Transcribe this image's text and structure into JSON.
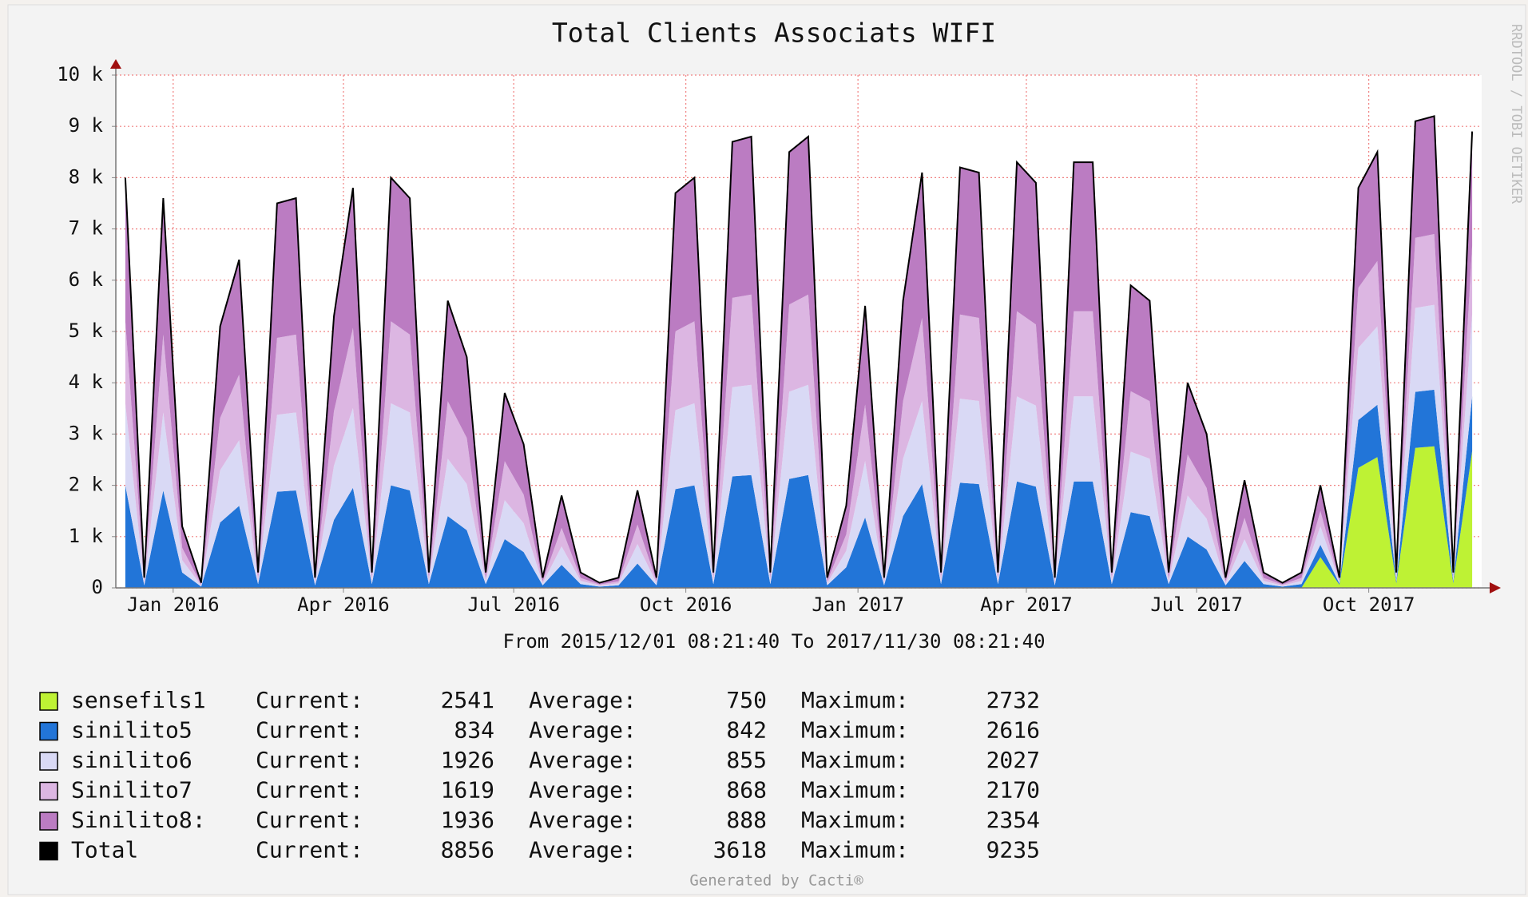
{
  "chart_data": {
    "type": "stacked_area",
    "title": "Total Clients Associats WIFI",
    "xlim": [
      "2015/12/01 08:21:40",
      "2017/11/30 08:21:40"
    ],
    "range_text": "From 2015/12/01 08:21:40 To 2017/11/30 08:21:40",
    "xticks": [
      {
        "value": "2016-01",
        "label": "Jan 2016"
      },
      {
        "value": "2016-04",
        "label": "Apr 2016"
      },
      {
        "value": "2016-07",
        "label": "Jul 2016"
      },
      {
        "value": "2016-10",
        "label": "Oct 2016"
      },
      {
        "value": "2017-01",
        "label": "Jan 2017"
      },
      {
        "value": "2017-04",
        "label": "Apr 2017"
      },
      {
        "value": "2017-07",
        "label": "Jul 2017"
      },
      {
        "value": "2017-10",
        "label": "Oct 2017"
      }
    ],
    "ylim": [
      0,
      10000
    ],
    "yticks": [
      0,
      {
        "value": 1000,
        "label": "1 k"
      },
      {
        "value": 2000,
        "label": "2 k"
      },
      {
        "value": 3000,
        "label": "3 k"
      },
      {
        "value": 4000,
        "label": "4 k"
      },
      {
        "value": 5000,
        "label": "5 k"
      },
      {
        "value": 6000,
        "label": "6 k"
      },
      {
        "value": 7000,
        "label": "7 k"
      },
      {
        "value": 8000,
        "label": "8 k"
      },
      {
        "value": 9000,
        "label": "9 k"
      },
      {
        "value": 10000,
        "label": "10 k"
      }
    ],
    "grid": true,
    "legend_labels": [
      "Current:",
      "Average:",
      "Maximum:"
    ],
    "series": [
      {
        "name": "sensefils1",
        "color": "#bef234",
        "current": 2541,
        "average": 750,
        "maximum": 2732,
        "values": [
          0,
          0,
          0,
          0,
          0,
          0,
          0,
          0,
          0,
          0,
          0,
          0,
          0,
          0,
          0,
          0,
          0,
          0,
          0,
          0,
          0,
          0,
          0,
          0,
          0,
          0,
          0,
          0,
          0,
          0,
          0,
          0,
          0,
          0,
          0,
          0,
          0,
          0,
          0,
          0,
          0,
          0,
          0,
          0,
          0,
          0,
          0,
          0,
          0,
          0,
          0,
          0,
          0,
          0,
          0,
          0,
          0,
          0,
          0,
          0,
          0,
          0,
          0,
          600,
          60,
          2340,
          2550,
          90,
          2730,
          2760,
          90,
          2670
        ]
      },
      {
        "name": "sinilito5",
        "color": "#2275d8",
        "current": 834,
        "average": 842,
        "maximum": 2616,
        "values": [
          2000,
          50,
          1900,
          300,
          25,
          1275,
          1600,
          75,
          1875,
          1900,
          50,
          1325,
          1950,
          75,
          2000,
          1900,
          75,
          1400,
          1125,
          75,
          950,
          700,
          50,
          450,
          75,
          25,
          50,
          475,
          50,
          1925,
          2000,
          75,
          2175,
          2200,
          75,
          2125,
          2200,
          50,
          400,
          1375,
          50,
          1400,
          2025,
          75,
          2050,
          2025,
          75,
          2075,
          1975,
          50,
          2075,
          2075,
          75,
          1475,
          1400,
          75,
          1000,
          750,
          50,
          525,
          75,
          25,
          75,
          240,
          24,
          936,
          1020,
          36,
          1092,
          1104,
          36,
          1068
        ]
      },
      {
        "name": "sinilito6",
        "color": "#d9d9f5",
        "current": 1926,
        "average": 855,
        "maximum": 2027,
        "values": [
          1600,
          40,
          1520,
          240,
          20,
          1020,
          1280,
          60,
          1500,
          1520,
          40,
          1060,
          1560,
          60,
          1600,
          1520,
          60,
          1120,
          900,
          60,
          760,
          560,
          40,
          360,
          60,
          20,
          40,
          380,
          40,
          1540,
          1600,
          60,
          1740,
          1760,
          60,
          1700,
          1760,
          40,
          320,
          1100,
          40,
          1120,
          1620,
          60,
          1640,
          1620,
          60,
          1660,
          1580,
          40,
          1660,
          1660,
          60,
          1180,
          1120,
          60,
          800,
          600,
          40,
          420,
          60,
          20,
          60,
          360,
          36,
          1404,
          1530,
          54,
          1638,
          1656,
          54,
          1602
        ]
      },
      {
        "name": "Sinilito7",
        "color": "#dcb6e2",
        "current": 1619,
        "average": 868,
        "maximum": 2170,
        "values": [
          1600,
          40,
          1520,
          240,
          20,
          1020,
          1280,
          60,
          1500,
          1520,
          40,
          1060,
          1560,
          60,
          1600,
          1520,
          60,
          1120,
          900,
          60,
          760,
          560,
          40,
          360,
          60,
          20,
          40,
          380,
          40,
          1540,
          1600,
          60,
          1740,
          1760,
          60,
          1700,
          1760,
          40,
          320,
          1100,
          40,
          1120,
          1620,
          60,
          1640,
          1620,
          60,
          1660,
          1580,
          40,
          1660,
          1660,
          60,
          1180,
          1120,
          60,
          800,
          600,
          40,
          420,
          60,
          20,
          60,
          300,
          30,
          1170,
          1275,
          45,
          1365,
          1380,
          45,
          1335
        ]
      },
      {
        "name": "Sinilito8:",
        "color": "#bb7cc2",
        "current": 1936,
        "average": 888,
        "maximum": 2354,
        "values": [
          2800,
          70,
          2660,
          420,
          35,
          1785,
          2240,
          105,
          2625,
          2660,
          70,
          1855,
          2730,
          105,
          2800,
          2660,
          105,
          1960,
          1575,
          105,
          1330,
          980,
          70,
          630,
          105,
          35,
          70,
          665,
          70,
          2695,
          2800,
          105,
          3045,
          3080,
          105,
          2975,
          3080,
          70,
          560,
          1925,
          70,
          1960,
          2835,
          105,
          2870,
          2835,
          105,
          2905,
          2765,
          70,
          2905,
          2905,
          105,
          2065,
          1960,
          105,
          1400,
          1050,
          70,
          735,
          105,
          35,
          105,
          500,
          50,
          1950,
          2125,
          75,
          2275,
          2300,
          75,
          2225
        ]
      },
      {
        "name": "Total",
        "color": "#000000",
        "current": 8856,
        "average": 3618,
        "maximum": 9235
      }
    ],
    "footer": "Generated by Cacti®",
    "side_text": "RRDTOOL / TOBI OETIKER"
  }
}
